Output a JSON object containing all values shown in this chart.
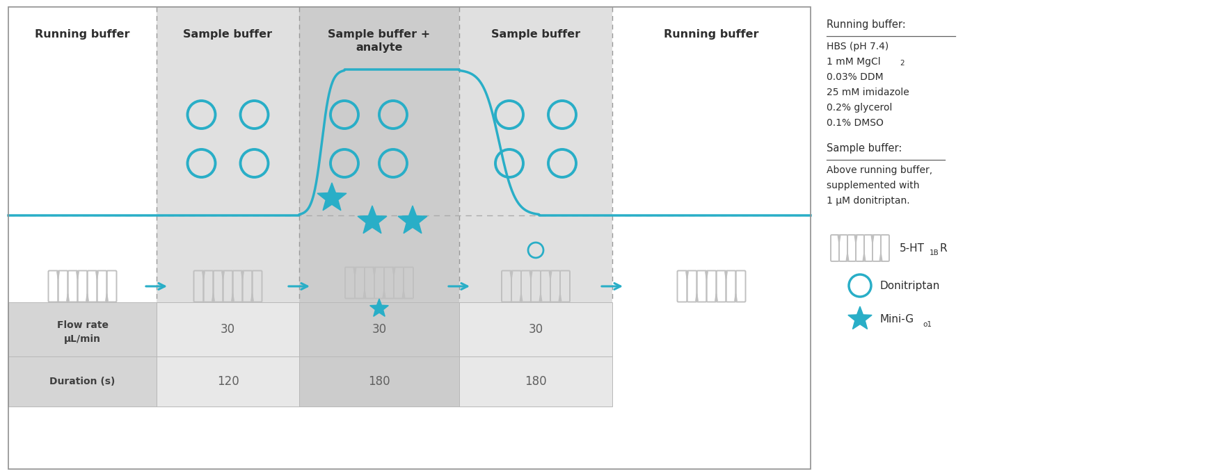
{
  "bg_color": "#ffffff",
  "teal": "#29aec7",
  "light_gray": "#e0e0e0",
  "medium_gray": "#cccccc",
  "header_gray": "#d0d0d0",
  "section_labels": [
    "Running buffer",
    "Sample buffer",
    "Sample buffer +\nanalyte",
    "Sample buffer",
    "Running buffer"
  ],
  "section_bg": [
    "#ffffff",
    "#e0e0e0",
    "#cccccc",
    "#e0e0e0",
    "#ffffff"
  ],
  "running_buffer_lines": [
    "HBS (pH 7.4)",
    "1 mM MgCl₂",
    "0.03% DDM",
    "25 mM imidazole",
    "0.2% glycerol",
    "0.1% DMSO"
  ],
  "sample_buffer_lines": [
    "Above running buffer,",
    "supplemented with",
    "1 μM donitriptan."
  ],
  "flow_rate_values": [
    "30",
    "30",
    "30"
  ],
  "duration_values": [
    "120",
    "180",
    "180"
  ]
}
